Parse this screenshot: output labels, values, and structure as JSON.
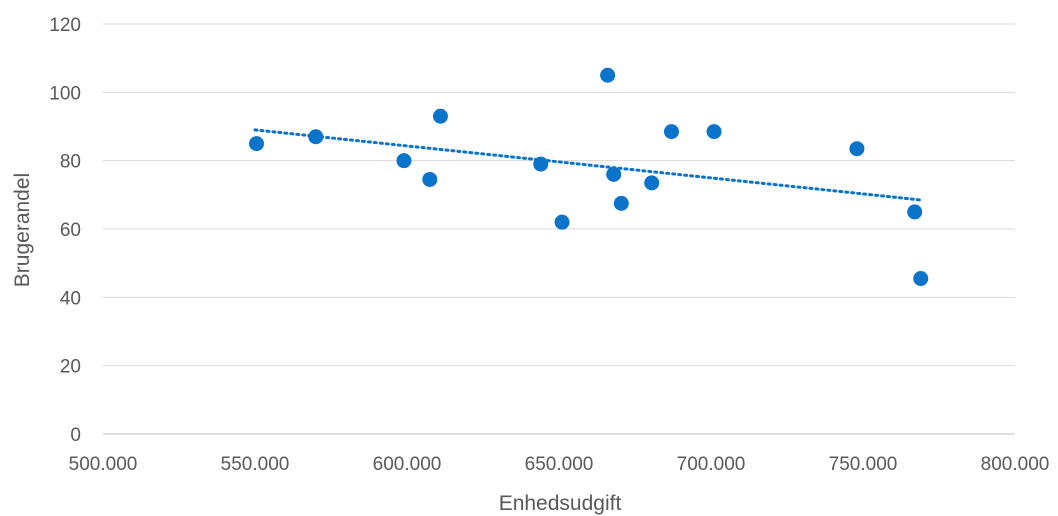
{
  "chart_data": {
    "type": "scatter",
    "title": "",
    "xlabel": "Enhedsudgift",
    "ylabel": "Brugerandel",
    "xlim": [
      500000,
      800000
    ],
    "ylim": [
      0,
      120
    ],
    "x_ticks": [
      500000,
      550000,
      600000,
      650000,
      700000,
      750000,
      800000
    ],
    "x_tick_labels": [
      "500.000",
      "550.000",
      "600.000",
      "650.000",
      "700.000",
      "750.000",
      "800.000"
    ],
    "y_ticks": [
      0,
      20,
      40,
      60,
      80,
      100,
      120
    ],
    "y_tick_labels": [
      "0",
      "20",
      "40",
      "60",
      "80",
      "100",
      "120"
    ],
    "grid": "horizontal",
    "point_color": "#0b73c9",
    "series": [
      {
        "x": [
          550500,
          570000,
          599000,
          607500,
          611000,
          644000,
          651000,
          666000,
          668000,
          670500,
          680500,
          687000,
          701000,
          748000,
          767000,
          769000
        ],
        "y": [
          85,
          87,
          80,
          74.5,
          93,
          79,
          62,
          105,
          76,
          67.5,
          73.5,
          88.5,
          88.5,
          83.5,
          65,
          45.5
        ]
      }
    ],
    "trendline": {
      "type": "linear",
      "x": [
        550000,
        769000
      ],
      "y": [
        89,
        68.5
      ]
    }
  }
}
